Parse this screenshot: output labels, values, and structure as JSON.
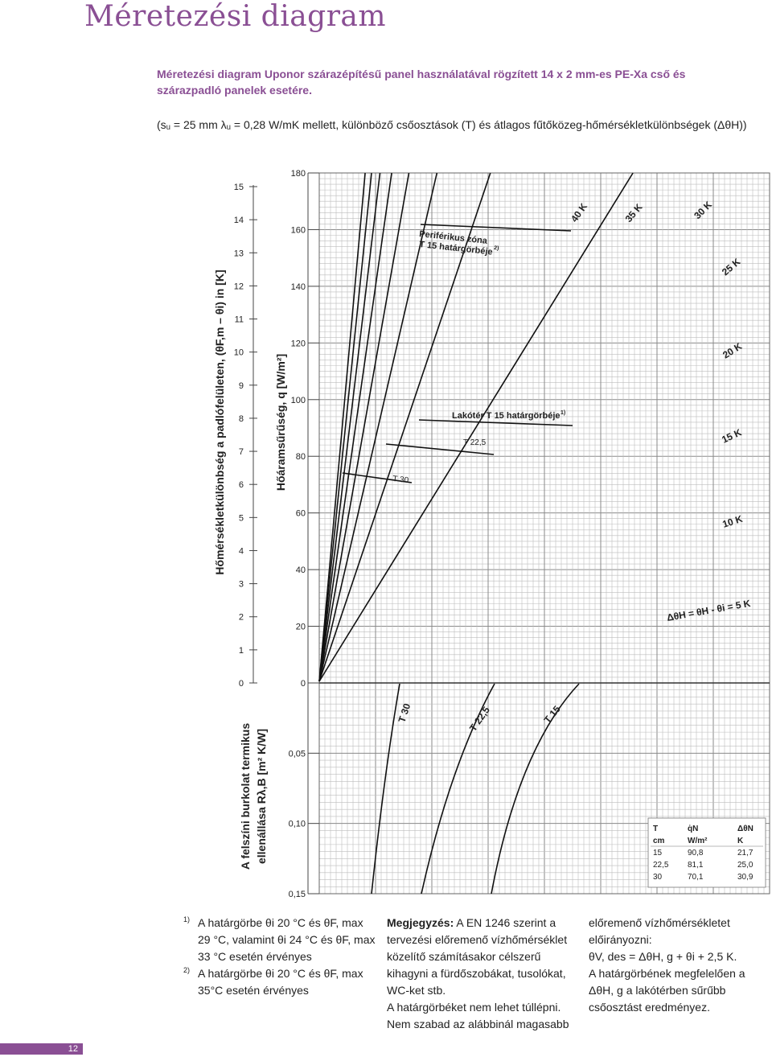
{
  "page": {
    "title": "Méretezési diagram",
    "subtitle": "Méretezési diagram Uponor szárazépítésű panel használatával rögzített 14 x 2 mm-es PE-Xa cső és szárazpadló panelek esetére.",
    "params": "(sᵤ = 25 mm λᵤ = 0,28 W/mK mellett, különböző csőosztások (T) és átlagos fűtőközeg-hőmérsékletkülönbségek (ΔθH))",
    "page_number": "12",
    "accent_color": "#8a4f94"
  },
  "chart_data": {
    "type": "line",
    "grid": true,
    "x_axis": {
      "range": [
        0,
        0.15
      ],
      "units": "m² K/W (bottom section, downward)"
    },
    "axes": {
      "left_outer": {
        "label": "Hőmérsékletkülönbség a padlófelületen, (θF,m – θi) in [K]",
        "ticks": [
          "0",
          "1",
          "2",
          "3",
          "4",
          "5",
          "6",
          "7",
          "8",
          "9",
          "10",
          "11",
          "12",
          "13",
          "14",
          "15"
        ]
      },
      "left_inner": {
        "label": "Hőáramsűrűség, q [W/m²]",
        "ticks": [
          "0",
          "20",
          "40",
          "60",
          "80",
          "100",
          "120",
          "140",
          "160",
          "180"
        ],
        "range": [
          0,
          180
        ]
      },
      "lower": {
        "label_line1": "A felszíni burkolat termikus",
        "label_line2": "ellenállása Rλ,B [m² K/W]",
        "ticks": [
          "0,05",
          "0,10",
          "0,15"
        ],
        "range": [
          0,
          0.15
        ]
      }
    },
    "series": [
      {
        "name": "Δθ_H = θ_H - θ_i = 5 K",
        "label": "ΔθH = θH - θi = 5 K",
        "dT": 5
      },
      {
        "name": "10 K",
        "label": "10 K",
        "dT": 10
      },
      {
        "name": "15 K",
        "label": "15 K",
        "dT": 15
      },
      {
        "name": "20 K",
        "label": "20 K",
        "dT": 20
      },
      {
        "name": "25 K",
        "label": "25 K",
        "dT": 25
      },
      {
        "name": "30 K",
        "label": "30 K",
        "dT": 30
      },
      {
        "name": "35 K",
        "label": "35 K",
        "dT": 35
      },
      {
        "name": "40 K",
        "label": "40 K",
        "dT": 40
      }
    ],
    "spacing_curves": [
      {
        "name": "T 30",
        "label": "T 30"
      },
      {
        "name": "T 22,5",
        "label": "T 22,5"
      },
      {
        "name": "T 15",
        "label": "T 15"
      }
    ],
    "limit_curves": [
      {
        "name": "Periférikus zóna T 15 határgörbéje",
        "label_line1": "Periférikus zóna",
        "label_line2": "T 15 határgörbéje",
        "sup": "2)"
      },
      {
        "name": "Lakótér T 15 határgörbéje",
        "label": "Lakótér T 15 határgörbéje",
        "sup": "1)"
      },
      {
        "name": "T 22,5",
        "label": "T 22,5"
      },
      {
        "name": "T 30",
        "label": "T 30"
      }
    ],
    "table": {
      "headers": [
        "T",
        "q̇N",
        "ΔθN"
      ],
      "units": [
        "cm",
        "W/m²",
        "K"
      ],
      "rows": [
        [
          "15",
          "90,8",
          "21,7"
        ],
        [
          "22,5",
          "81,1",
          "25,0"
        ],
        [
          "30",
          "70,1",
          "30,9"
        ]
      ]
    }
  },
  "notes": {
    "fn1_sup": "1)",
    "fn1_line1": "A határgörbe θi 20 °C és θF, max",
    "fn1_line2": "29 °C, valamint θi 24 °C és θF, max",
    "fn1_line3": "33 °C esetén érvényes",
    "fn2_sup": "2)",
    "fn2_line1": "A határgörbe θi 20 °C és θF, max",
    "fn2_line2": "35°C esetén érvényes",
    "mid_bold": "Megjegyzés:",
    "mid_line1": " A EN 1246 szerint a",
    "mid_line2": "tervezési előremenő vízhőmérséklet",
    "mid_line3": "közelítő számításakor célszerű",
    "mid_line4": "kihagyni a fürdőszobákat, tusolókat,",
    "mid_line5": "WC-ket stb.",
    "mid_line6": "A határgörbéket nem lehet túllépni.",
    "mid_line7": "Nem szabad az alábbinál magasabb",
    "right_line1": "előremenő vízhőmérsékletet",
    "right_line2": "előirányozni:",
    "right_line3": "θV, des = ΔθH, g + θi + 2,5 K.",
    "right_line4": "A határgörbének megfelelően a",
    "right_line5": "ΔθH, g a lakótérben sűrűbb",
    "right_line6": "csőosztást eredményez."
  }
}
